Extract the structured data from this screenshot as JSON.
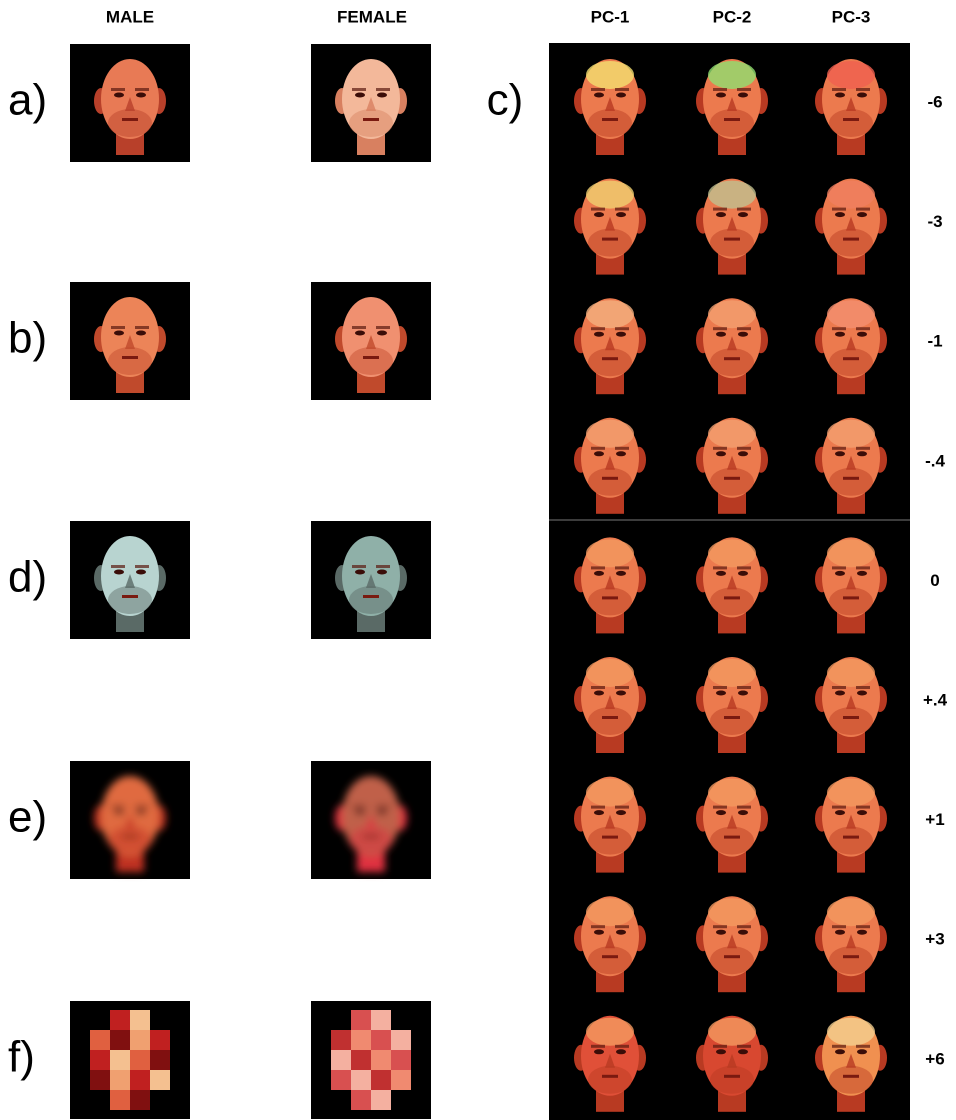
{
  "columns": {
    "male": "MALE",
    "female": "FEMALE",
    "pcs": [
      "PC-1",
      "PC-2",
      "PC-3"
    ]
  },
  "rows": [
    "a)",
    "b)",
    "d)",
    "e)",
    "f)"
  ],
  "panel_label": "c)",
  "weights": [
    "-6",
    "-3",
    "-1",
    "-.4",
    "0",
    "+.4",
    "+1",
    "+3",
    "+6"
  ]
}
